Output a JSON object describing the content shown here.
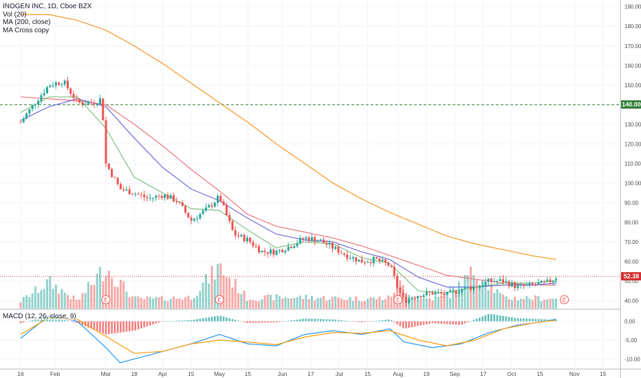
{
  "legend": {
    "title": "INOGEN INC, 1D, Cboe BZX",
    "vol": "Vol (20)",
    "ma": "MA (200, close)",
    "macross": "MA Cross copy",
    "macd": "MACD (12, 26, close, 9)"
  },
  "badges": {
    "resistance": "140.00",
    "last": "52.38"
  },
  "colors": {
    "up": "#26a69a",
    "down": "#ef5350",
    "ma200": "#f7931e",
    "ma_fast": "#7fbf7f",
    "ma_mid": "#6b6bdc",
    "ma_slow": "#e8737d",
    "resistance": "#2e7d32",
    "last": "#d32f2f"
  },
  "chart_data": {
    "type": "line",
    "price_axis": {
      "ticks": [
        "190.00",
        "180.00",
        "170.00",
        "160.00",
        "150.00",
        "140.00",
        "130.00",
        "120.00",
        "110.00",
        "100.00",
        "90.00",
        "80.00",
        "70.00",
        "60.00",
        "50.00",
        "40.00"
      ],
      "range": [
        36,
        192
      ]
    },
    "macd_axis": {
      "ticks": [
        "0.00",
        "-5.00",
        "-10.00"
      ],
      "range": [
        -12.5,
        3
      ]
    },
    "x_ticks": [
      "16",
      "Feb",
      "Mar",
      "18",
      "Apr",
      "15",
      "May",
      "15",
      "Jun",
      "17",
      "Jul",
      "15",
      "Aug",
      "19",
      "Sep",
      "17",
      "Oct",
      "15",
      "Nov",
      "15"
    ],
    "x_tick_days": [
      0,
      17,
      42,
      56,
      70,
      84,
      98,
      112,
      129,
      143,
      157,
      171,
      186,
      200,
      214,
      228,
      242,
      256,
      273,
      287
    ],
    "horizontal_lines": [
      {
        "value": 140,
        "label": "140.00",
        "style": "dashed"
      },
      {
        "value": 52.38,
        "label": "52.38",
        "style": "dotted"
      }
    ],
    "earnings_markers": {
      "label": "E",
      "days": [
        42,
        98,
        186,
        268
      ]
    },
    "series": [
      {
        "key": "close",
        "points": [
          [
            0,
            131
          ],
          [
            7,
            141
          ],
          [
            14,
            150
          ],
          [
            21,
            152
          ],
          [
            28,
            141
          ],
          [
            35,
            141
          ],
          [
            40,
            143
          ],
          [
            42,
            110
          ],
          [
            49,
            97
          ],
          [
            56,
            95
          ],
          [
            63,
            92
          ],
          [
            70,
            94
          ],
          [
            77,
            91
          ],
          [
            84,
            81
          ],
          [
            91,
            86
          ],
          [
            98,
            93
          ],
          [
            105,
            74
          ],
          [
            112,
            71
          ],
          [
            119,
            65
          ],
          [
            126,
            65
          ],
          [
            133,
            68
          ],
          [
            140,
            72
          ],
          [
            147,
            71
          ],
          [
            154,
            67
          ],
          [
            161,
            63
          ],
          [
            168,
            60
          ],
          [
            175,
            61
          ],
          [
            182,
            58
          ],
          [
            186,
            46
          ],
          [
            189,
            40
          ],
          [
            196,
            43
          ],
          [
            203,
            44
          ],
          [
            210,
            43
          ],
          [
            217,
            46
          ],
          [
            224,
            47
          ],
          [
            231,
            50
          ],
          [
            238,
            50
          ],
          [
            245,
            47
          ],
          [
            252,
            48
          ],
          [
            259,
            49
          ],
          [
            264,
            52
          ]
        ]
      },
      {
        "key": "ma200",
        "points": [
          [
            0,
            186
          ],
          [
            14,
            186
          ],
          [
            28,
            183
          ],
          [
            42,
            178
          ],
          [
            56,
            170
          ],
          [
            70,
            161
          ],
          [
            84,
            151
          ],
          [
            98,
            141
          ],
          [
            112,
            131
          ],
          [
            126,
            120
          ],
          [
            140,
            110
          ],
          [
            154,
            100
          ],
          [
            168,
            92
          ],
          [
            182,
            85
          ],
          [
            196,
            79
          ],
          [
            210,
            73
          ],
          [
            224,
            69
          ],
          [
            238,
            66
          ],
          [
            252,
            63
          ],
          [
            264,
            61
          ]
        ]
      },
      {
        "key": "ma_fast",
        "points": [
          [
            0,
            136
          ],
          [
            14,
            144
          ],
          [
            28,
            144
          ],
          [
            42,
            128
          ],
          [
            56,
            103
          ],
          [
            70,
            95
          ],
          [
            84,
            87
          ],
          [
            98,
            86
          ],
          [
            112,
            76
          ],
          [
            126,
            67
          ],
          [
            140,
            70
          ],
          [
            154,
            69
          ],
          [
            168,
            62
          ],
          [
            182,
            59
          ],
          [
            196,
            45
          ],
          [
            210,
            44
          ],
          [
            224,
            47
          ],
          [
            238,
            49
          ],
          [
            252,
            49
          ],
          [
            264,
            50
          ]
        ]
      },
      {
        "key": "ma_mid",
        "points": [
          [
            0,
            132
          ],
          [
            14,
            139
          ],
          [
            28,
            143
          ],
          [
            42,
            139
          ],
          [
            56,
            123
          ],
          [
            70,
            108
          ],
          [
            84,
            97
          ],
          [
            98,
            91
          ],
          [
            112,
            82
          ],
          [
            126,
            74
          ],
          [
            140,
            71
          ],
          [
            154,
            70
          ],
          [
            168,
            65
          ],
          [
            182,
            61
          ],
          [
            196,
            52
          ],
          [
            210,
            47
          ],
          [
            224,
            47
          ],
          [
            238,
            48
          ],
          [
            252,
            48
          ],
          [
            264,
            49
          ]
        ]
      },
      {
        "key": "ma_slow",
        "points": [
          [
            0,
            144
          ],
          [
            14,
            143
          ],
          [
            28,
            142
          ],
          [
            42,
            140
          ],
          [
            56,
            130
          ],
          [
            70,
            119
          ],
          [
            84,
            107
          ],
          [
            98,
            96
          ],
          [
            112,
            84
          ],
          [
            126,
            78
          ],
          [
            140,
            75
          ],
          [
            154,
            72
          ],
          [
            168,
            68
          ],
          [
            182,
            63
          ],
          [
            196,
            58
          ],
          [
            210,
            53
          ],
          [
            224,
            51
          ],
          [
            238,
            49
          ],
          [
            252,
            48
          ],
          [
            264,
            48
          ]
        ]
      },
      {
        "key": "macd_line",
        "points": [
          [
            0,
            -4.5
          ],
          [
            14,
            1.5
          ],
          [
            28,
            0
          ],
          [
            42,
            -7
          ],
          [
            49,
            -11
          ],
          [
            56,
            -10
          ],
          [
            70,
            -8
          ],
          [
            84,
            -6
          ],
          [
            98,
            -3.5
          ],
          [
            112,
            -6
          ],
          [
            126,
            -6.5
          ],
          [
            140,
            -3.5
          ],
          [
            154,
            -2.5
          ],
          [
            168,
            -3.5
          ],
          [
            182,
            -2
          ],
          [
            189,
            -5.5
          ],
          [
            203,
            -7
          ],
          [
            217,
            -6
          ],
          [
            231,
            -3
          ],
          [
            245,
            -1
          ],
          [
            259,
            0
          ],
          [
            264,
            0.6
          ]
        ]
      },
      {
        "key": "signal_line",
        "points": [
          [
            0,
            -3.5
          ],
          [
            14,
            1
          ],
          [
            28,
            0.5
          ],
          [
            42,
            -4
          ],
          [
            56,
            -8.5
          ],
          [
            70,
            -8
          ],
          [
            84,
            -6
          ],
          [
            98,
            -5
          ],
          [
            112,
            -5.5
          ],
          [
            126,
            -6.2
          ],
          [
            140,
            -4.2
          ],
          [
            154,
            -3
          ],
          [
            168,
            -3.2
          ],
          [
            182,
            -2.5
          ],
          [
            196,
            -5
          ],
          [
            210,
            -6.5
          ],
          [
            224,
            -5
          ],
          [
            238,
            -2
          ],
          [
            252,
            -0.5
          ],
          [
            264,
            0.3
          ]
        ]
      },
      {
        "key": "macd_hist",
        "points": [
          [
            0,
            -0.5
          ],
          [
            14,
            1.5
          ],
          [
            28,
            -0.5
          ],
          [
            42,
            -3.5
          ],
          [
            56,
            -2.5
          ],
          [
            70,
            0
          ],
          [
            84,
            0.3
          ],
          [
            98,
            1.5
          ],
          [
            112,
            -0.5
          ],
          [
            126,
            -0.3
          ],
          [
            140,
            0.7
          ],
          [
            154,
            0.5
          ],
          [
            168,
            -0.3
          ],
          [
            182,
            0.5
          ],
          [
            189,
            -2
          ],
          [
            203,
            -0.5
          ],
          [
            217,
            -1
          ],
          [
            231,
            2
          ],
          [
            245,
            0.8
          ],
          [
            259,
            0.5
          ],
          [
            264,
            0.3
          ]
        ]
      },
      {
        "key": "volume",
        "points": [
          [
            0,
            1
          ],
          [
            14,
            3.5
          ],
          [
            28,
            1
          ],
          [
            42,
            5.5
          ],
          [
            56,
            1.3
          ],
          [
            70,
            1.3
          ],
          [
            84,
            1.5
          ],
          [
            98,
            5.5
          ],
          [
            112,
            1.3
          ],
          [
            126,
            1.5
          ],
          [
            140,
            1.5
          ],
          [
            154,
            1.4
          ],
          [
            168,
            1.3
          ],
          [
            182,
            1.4
          ],
          [
            186,
            3.5
          ],
          [
            196,
            1.3
          ],
          [
            210,
            1.5
          ],
          [
            224,
            5
          ],
          [
            238,
            1.4
          ],
          [
            252,
            1.4
          ],
          [
            264,
            1.3
          ]
        ]
      }
    ]
  }
}
